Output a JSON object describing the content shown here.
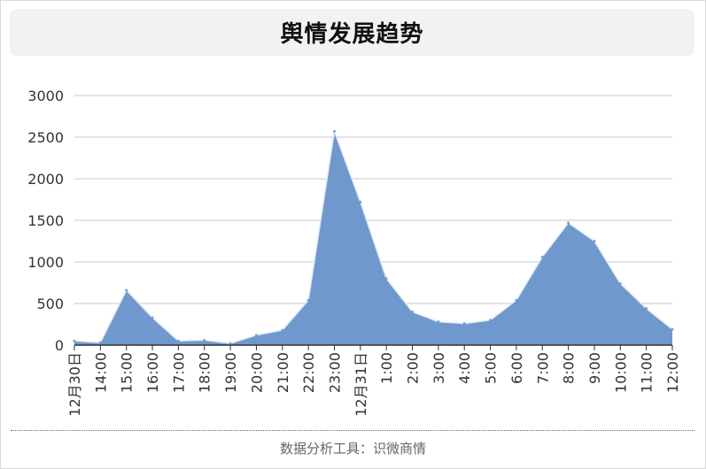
{
  "title": "舆情发展趋势",
  "footer": "数据分析工具：识微商情",
  "colors": {
    "area_fill": "#6f98cc",
    "area_line": "#dfe8f5",
    "grid": "#c8c8c8",
    "axis": "#333333",
    "text": "#333333"
  },
  "chart_data": {
    "type": "area",
    "title": "舆情发展趋势",
    "xlabel": "",
    "ylabel": "",
    "ylim": [
      0,
      3000
    ],
    "yticks": [
      0,
      500,
      1000,
      1500,
      2000,
      2500,
      3000
    ],
    "grid": true,
    "legend": "none",
    "categories": [
      "12月30日",
      "14:00",
      "15:00",
      "16:00",
      "17:00",
      "18:00",
      "19:00",
      "20:00",
      "21:00",
      "22:00",
      "23:00",
      "12月31日",
      "1:00",
      "2:00",
      "3:00",
      "4:00",
      "5:00",
      "6:00",
      "7:00",
      "8:00",
      "9:00",
      "10:00",
      "11:00",
      "12:00"
    ],
    "series": [
      {
        "values": [
          50,
          30,
          660,
          330,
          50,
          60,
          20,
          120,
          180,
          540,
          2570,
          1720,
          800,
          400,
          280,
          260,
          300,
          540,
          1060,
          1470,
          1250,
          740,
          440,
          190
        ]
      }
    ]
  }
}
